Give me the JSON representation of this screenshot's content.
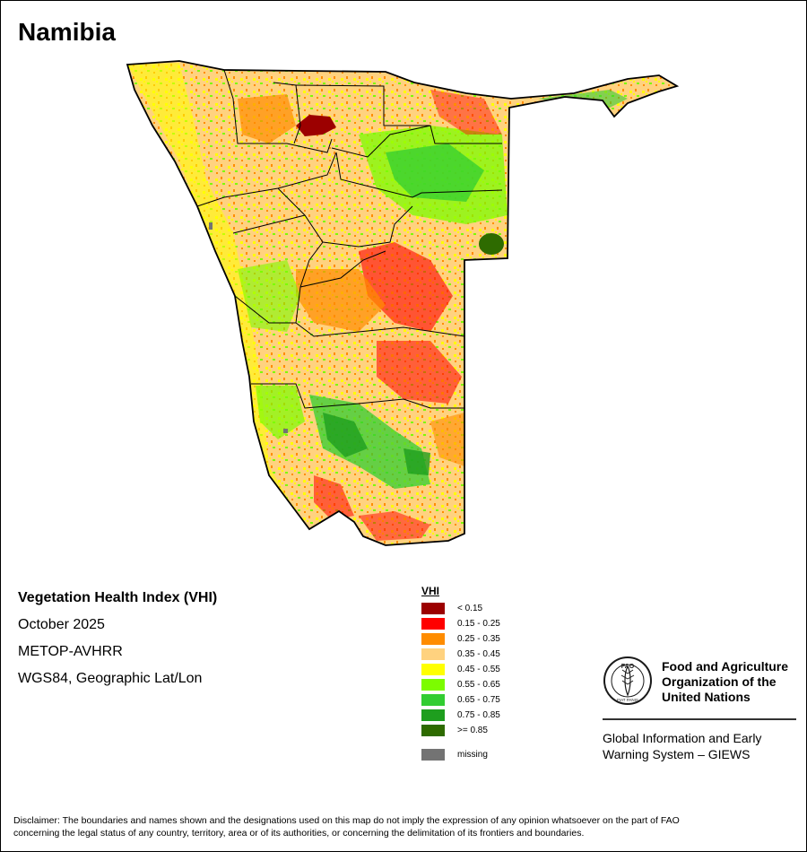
{
  "map": {
    "title": "Namibia"
  },
  "info": {
    "index_name": "Vegetation Health Index (VHI)",
    "period": "October 2025",
    "sensor": "METOP-AVHRR",
    "projection": "WGS84, Geographic Lat/Lon"
  },
  "legend": {
    "title": "VHI",
    "classes": [
      {
        "label": "< 0.15",
        "color": "#9c0000"
      },
      {
        "label": "0.15 - 0.25",
        "color": "#ff0000"
      },
      {
        "label": "0.25 - 0.35",
        "color": "#ff8c00"
      },
      {
        "label": "0.35 - 0.45",
        "color": "#ffd27f"
      },
      {
        "label": "0.45 - 0.55",
        "color": "#ffff00"
      },
      {
        "label": "0.55 - 0.65",
        "color": "#7cfc00"
      },
      {
        "label": "0.65 - 0.75",
        "color": "#32cd32"
      },
      {
        "label": "0.75 - 0.85",
        "color": "#1e9e1e"
      },
      {
        "label": ">= 0.85",
        "color": "#2e6b00"
      }
    ],
    "missing": {
      "label": "missing",
      "color": "#737373"
    }
  },
  "org": {
    "name_line1": "Food and Agriculture",
    "name_line2": "Organization of the",
    "name_line3": "United Nations",
    "logo_text": "FAO",
    "logo_motto": "FIAT PANIS",
    "system_line1": "Global Information and Early",
    "system_line2": "Warning System – GIEWS"
  },
  "disclaimer": {
    "line1": "Disclaimer: The boundaries and names shown and the designations used on this map do not imply the expression of any opinion whatsoever on the part of FAO",
    "line2": "concerning the legal status of any country, territory, area or of its authorities, or concerning the delimitation of its frontiers and boundaries."
  }
}
